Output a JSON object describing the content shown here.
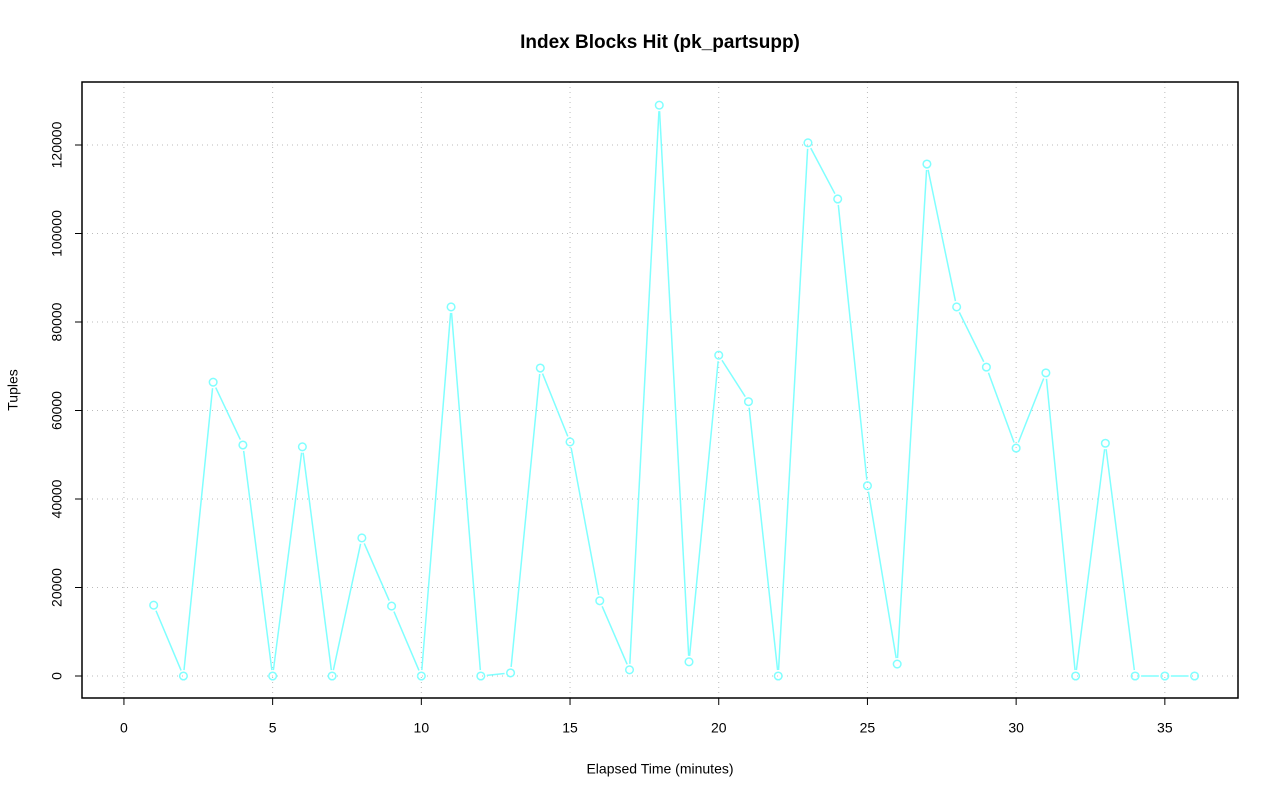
{
  "chart_data": {
    "type": "line",
    "title": "Index Blocks Hit (pk_partsupp)",
    "x_label": "Elapsed Time (minutes)",
    "y_label": "Tuples",
    "x": [
      1,
      2,
      3,
      4,
      5,
      6,
      7,
      8,
      9,
      10,
      11,
      12,
      13,
      14,
      15,
      16,
      17,
      18,
      19,
      20,
      21,
      22,
      23,
      24,
      25,
      26,
      27,
      28,
      29,
      30,
      31,
      32,
      33,
      34,
      35,
      36
    ],
    "series": [
      {
        "name": "pk_partsupp",
        "color": "#80ffff",
        "values": [
          16000,
          0,
          66400,
          52200,
          0,
          51800,
          0,
          31200,
          15800,
          0,
          83400,
          0,
          700,
          69600,
          52900,
          17000,
          1400,
          129000,
          3200,
          72500,
          62000,
          0,
          120500,
          107800,
          43000,
          2700,
          115700,
          83400,
          69800,
          51500,
          68500,
          0,
          52600,
          0,
          0,
          0
        ]
      }
    ],
    "xlim": [
      -1.41,
      37.46
    ],
    "xticks": [
      0,
      5,
      10,
      15,
      20,
      25,
      30,
      35
    ],
    "ylim": [
      -4972,
      134237
    ],
    "yticks": [
      0,
      20000,
      40000,
      60000,
      80000,
      100000,
      120000
    ],
    "grid": true
  }
}
